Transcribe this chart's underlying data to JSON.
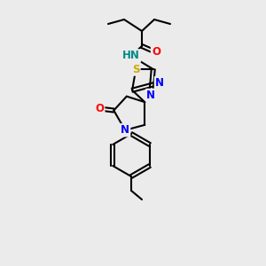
{
  "background_color": "#ebebeb",
  "atom_colors": {
    "C": "#000000",
    "N": "#0000ff",
    "O": "#ff0000",
    "S": "#ccaa00",
    "H": "#008888"
  },
  "bond_color": "#000000",
  "font_size_atoms": 8.5,
  "figsize": [
    3.0,
    3.0
  ],
  "dpi": 100
}
